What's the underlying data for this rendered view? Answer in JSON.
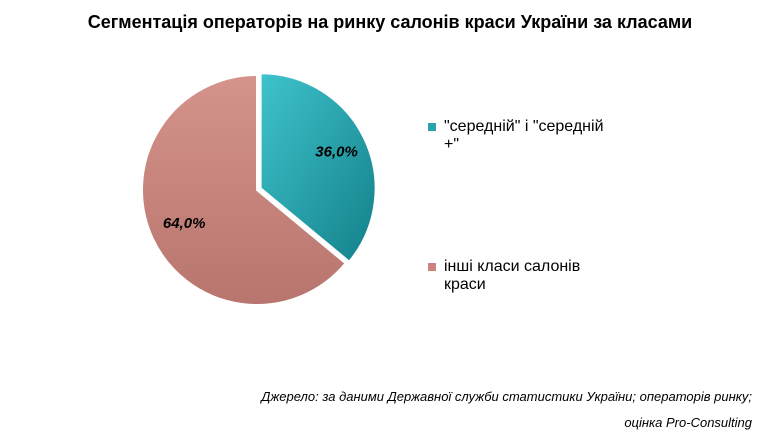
{
  "chart_data": {
    "type": "pie",
    "title": "Сегментація операторів на ринку салонів краси України за класами",
    "slices": [
      {
        "label": "\"середній\" і \"середній +\"",
        "legend_lines": [
          "\"середній\" і \"середній",
          "+\""
        ],
        "value": 36.0,
        "value_label": "36,0%",
        "color": "#2aa3ad"
      },
      {
        "label": "інші класи салонів краси",
        "legend_lines": [
          "інші класи салонів",
          "краси"
        ],
        "value": 64.0,
        "value_label": "64,0%",
        "color": "#c9847d"
      }
    ],
    "legend_position": "right"
  },
  "source": {
    "line1": "Джерело: за даними Державної служби статистики України; операторів ринку;",
    "line2": "оцінка Pro-Consulting"
  }
}
